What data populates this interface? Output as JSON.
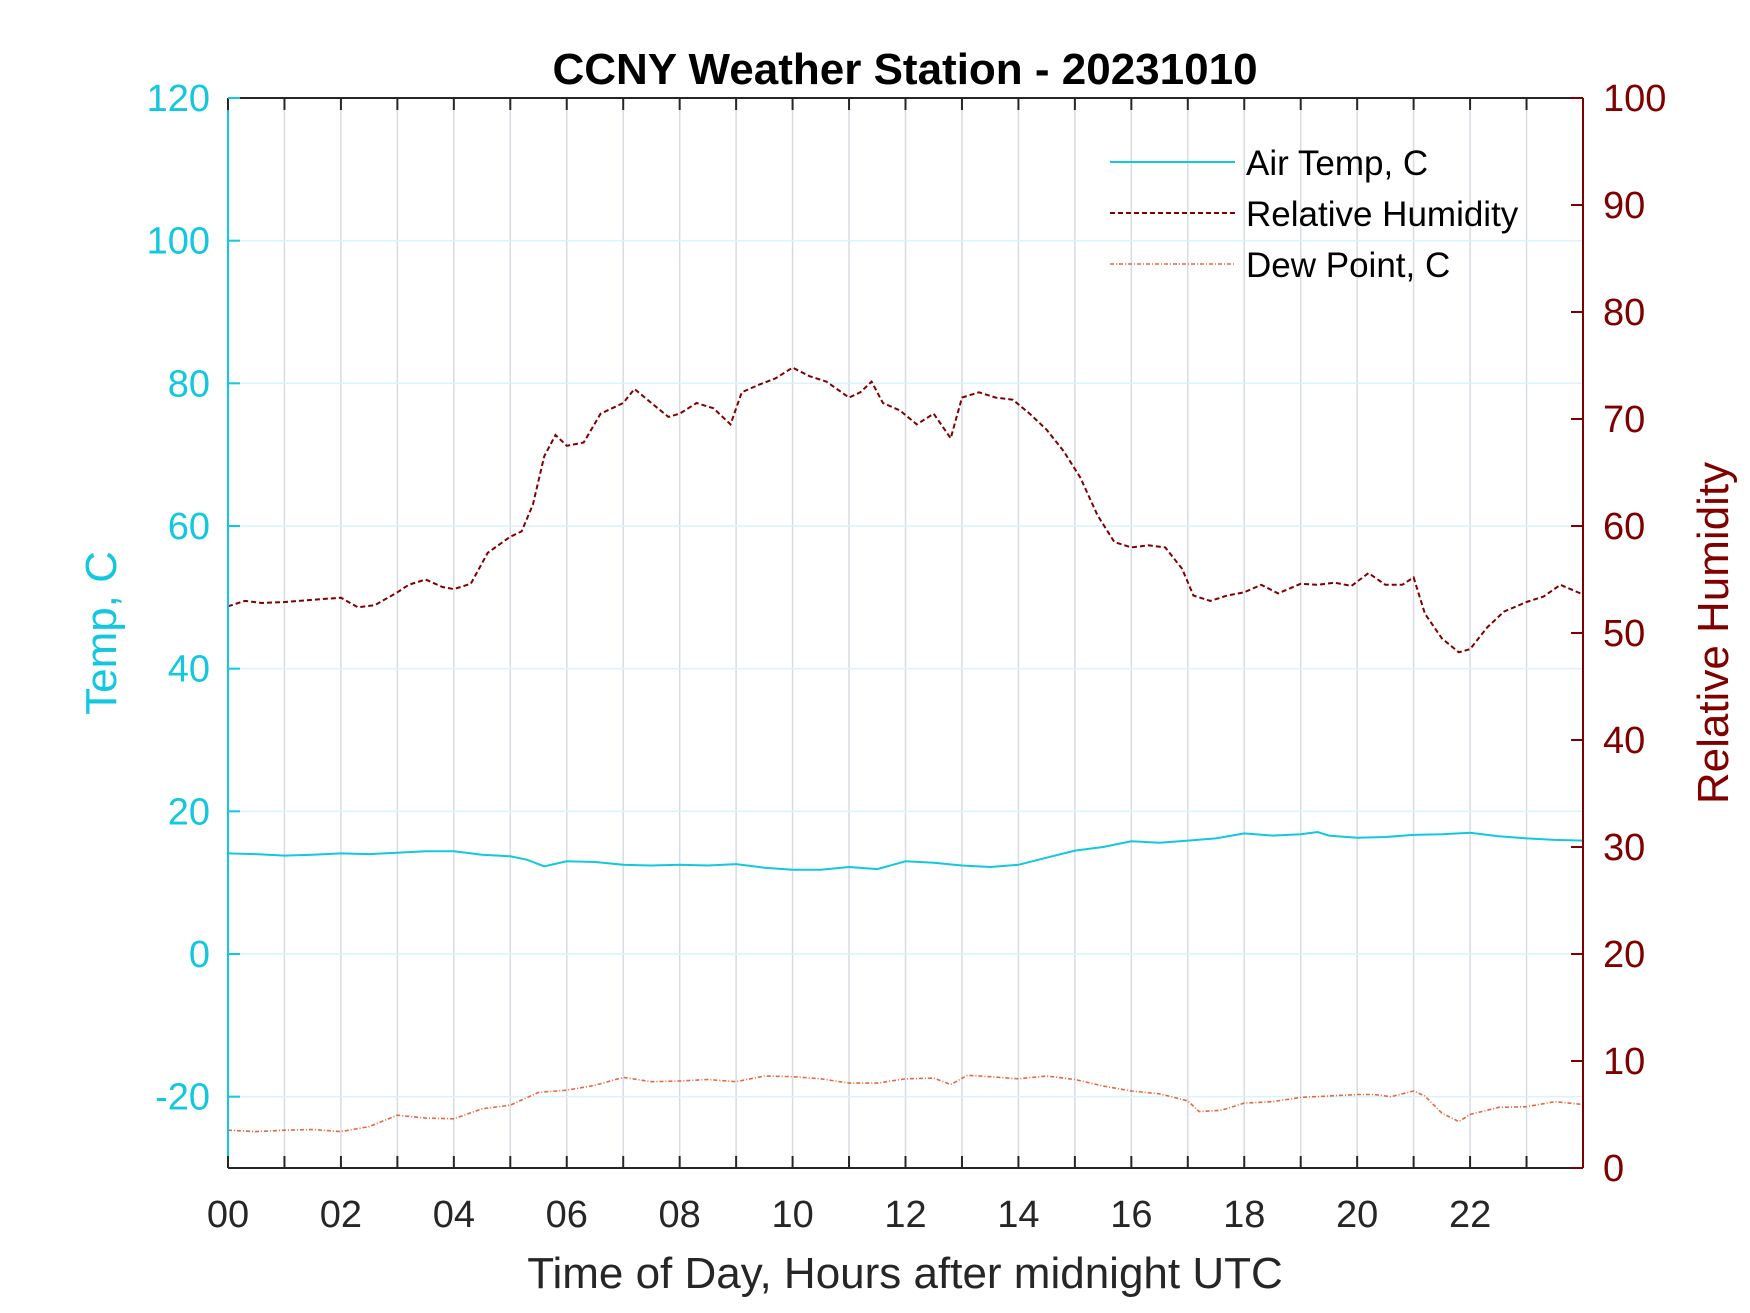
{
  "chart_data": {
    "type": "line",
    "title": "CCNY Weather Station - 20231010",
    "xlabel": "Time of Day, Hours after midnight UTC",
    "ylabel_left": "Temp, C",
    "ylabel_right": "Relative Humidity",
    "xlim": [
      0,
      24
    ],
    "ylim_left": [
      -30,
      120
    ],
    "ylim_right": [
      0,
      100
    ],
    "x_ticks": [
      "00",
      "02",
      "04",
      "06",
      "08",
      "10",
      "12",
      "14",
      "16",
      "18",
      "20",
      "22"
    ],
    "y_left_ticks": [
      "120",
      "100",
      "80",
      "60",
      "40",
      "20",
      "0",
      "-20"
    ],
    "y_right_ticks": [
      "100",
      "90",
      "80",
      "70",
      "60",
      "50",
      "40",
      "30",
      "20",
      "10",
      "0"
    ],
    "grid": "on",
    "legend_position": "top-right",
    "colors": {
      "air_temp": "#11c8e0",
      "relative_humidity": "#800000",
      "dew_point": "#e8673c",
      "grid_x": "#d7dce2",
      "grid_y": "#d9f3f8",
      "axis_box": "#262626"
    },
    "series": [
      {
        "name": "Air Temp, C",
        "axis": "left",
        "style": "solid",
        "x": [
          0,
          0.5,
          1,
          1.5,
          2,
          2.5,
          3,
          3.5,
          4,
          4.5,
          5,
          5.3,
          5.6,
          6,
          6.5,
          7,
          7.5,
          8,
          8.5,
          9,
          9.5,
          10,
          10.5,
          11,
          11.5,
          12,
          12.5,
          13,
          13.5,
          14,
          14.5,
          15,
          15.5,
          16,
          16.5,
          17,
          17.5,
          18,
          18.5,
          19,
          19.3,
          19.5,
          20,
          20.5,
          21,
          21.5,
          22,
          22.5,
          23,
          23.5,
          24
        ],
        "values": [
          14.1,
          14.0,
          13.8,
          13.9,
          14.1,
          14.0,
          14.2,
          14.4,
          14.4,
          13.9,
          13.7,
          13.2,
          12.3,
          13.0,
          12.9,
          12.5,
          12.4,
          12.5,
          12.4,
          12.6,
          12.1,
          11.8,
          11.8,
          12.2,
          11.9,
          13.0,
          12.8,
          12.4,
          12.2,
          12.5,
          13.5,
          14.5,
          15.0,
          15.8,
          15.6,
          15.9,
          16.2,
          16.9,
          16.6,
          16.8,
          17.1,
          16.6,
          16.3,
          16.4,
          16.7,
          16.8,
          17.0,
          16.5,
          16.2,
          16.0,
          15.9
        ]
      },
      {
        "name": "Relative Humidity",
        "axis": "right",
        "style": "dashed",
        "x": [
          0,
          0.3,
          0.6,
          1,
          1.5,
          2,
          2.3,
          2.6,
          3,
          3.2,
          3.5,
          3.8,
          4,
          4.3,
          4.6,
          5,
          5.2,
          5.4,
          5.6,
          5.8,
          6,
          6.3,
          6.6,
          7,
          7.2,
          7.5,
          7.8,
          8,
          8.3,
          8.6,
          8.9,
          9.1,
          9.4,
          9.7,
          10,
          10.3,
          10.6,
          11,
          11.2,
          11.4,
          11.6,
          11.9,
          12.2,
          12.5,
          12.8,
          13,
          13.3,
          13.6,
          13.9,
          14.2,
          14.5,
          14.8,
          15.1,
          15.4,
          15.7,
          16,
          16.3,
          16.6,
          16.9,
          17.1,
          17.4,
          17.7,
          18,
          18.3,
          18.6,
          19,
          19.3,
          19.6,
          19.9,
          20.2,
          20.5,
          20.8,
          21,
          21.2,
          21.5,
          21.8,
          22,
          22.3,
          22.6,
          23,
          23.3,
          23.6,
          24
        ],
        "values": [
          52.5,
          53.0,
          52.8,
          52.9,
          53.1,
          53.3,
          52.4,
          52.6,
          53.8,
          54.5,
          55.0,
          54.3,
          54.1,
          54.6,
          57.5,
          59.0,
          59.5,
          62.0,
          66.5,
          68.5,
          67.5,
          67.8,
          70.5,
          71.5,
          72.8,
          71.5,
          70.2,
          70.5,
          71.5,
          71.0,
          69.5,
          72.5,
          73.2,
          73.8,
          74.8,
          74.0,
          73.5,
          72.0,
          72.5,
          73.5,
          71.5,
          70.8,
          69.5,
          70.5,
          68.2,
          72.0,
          72.5,
          72.0,
          71.8,
          70.5,
          69.0,
          67.0,
          64.5,
          61.0,
          58.5,
          58.0,
          58.2,
          58.0,
          56.0,
          53.5,
          53.0,
          53.5,
          53.8,
          54.5,
          53.7,
          54.6,
          54.5,
          54.7,
          54.4,
          55.6,
          54.5,
          54.5,
          55.2,
          51.8,
          49.5,
          48.2,
          48.5,
          50.5,
          52.0,
          52.9,
          53.4,
          54.5,
          53.6
        ]
      },
      {
        "name": "Dew Point, C",
        "axis": "left",
        "style": "dash-dot",
        "x": [
          0,
          0.5,
          1,
          1.5,
          2,
          2.5,
          3,
          3.5,
          4,
          4.5,
          5,
          5.5,
          6,
          6.5,
          7,
          7.5,
          8,
          8.5,
          9,
          9.5,
          10,
          10.5,
          11,
          11.5,
          12,
          12.5,
          12.8,
          13.1,
          13.5,
          14,
          14.5,
          15,
          15.5,
          16,
          16.5,
          17,
          17.2,
          17.6,
          18,
          18.5,
          19,
          19.5,
          20,
          20.3,
          20.6,
          21,
          21.2,
          21.5,
          21.8,
          22,
          22.5,
          23,
          23.5,
          24
        ],
        "values": [
          -24.7,
          -24.9,
          -24.7,
          -24.6,
          -24.9,
          -24.2,
          -22.6,
          -23.0,
          -23.1,
          -21.7,
          -21.2,
          -19.4,
          -19.1,
          -18.4,
          -17.3,
          -17.9,
          -17.8,
          -17.6,
          -17.9,
          -17.1,
          -17.2,
          -17.5,
          -18.1,
          -18.1,
          -17.5,
          -17.4,
          -18.3,
          -17.0,
          -17.2,
          -17.5,
          -17.1,
          -17.6,
          -18.5,
          -19.2,
          -19.6,
          -20.6,
          -22.1,
          -21.9,
          -20.9,
          -20.7,
          -20.1,
          -19.9,
          -19.7,
          -19.7,
          -20.0,
          -19.2,
          -19.9,
          -22.3,
          -23.5,
          -22.5,
          -21.5,
          -21.4,
          -20.7,
          -21.1
        ]
      }
    ]
  }
}
